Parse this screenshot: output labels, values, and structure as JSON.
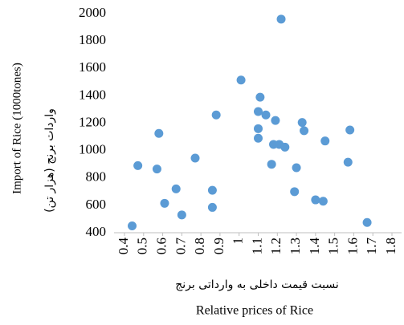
{
  "chart_data": {
    "type": "scatter",
    "y_label": "Import of Rice (1000tones)",
    "y_label_fa": "واردات برنج (هزار تن)",
    "x_label_fa": "نسبت قیمت داخلی به وارداتی برنج",
    "x_label": "Relative prices of Rice",
    "color": "#5b9bd5",
    "x": [
      0.47,
      0.44,
      0.58,
      0.57,
      0.61,
      0.67,
      0.7,
      0.77,
      0.86,
      0.86,
      0.88,
      1.01,
      1.1,
      1.11,
      1.1,
      1.1,
      1.14,
      1.19,
      1.18,
      1.21,
      1.24,
      1.17,
      1.22,
      1.33,
      1.34,
      1.3,
      1.29,
      1.4,
      1.45,
      1.44,
      1.57,
      1.58,
      1.67
    ],
    "values": [
      890,
      450,
      1125,
      865,
      615,
      720,
      530,
      945,
      710,
      585,
      1260,
      1515,
      1285,
      1390,
      1160,
      1090,
      1260,
      1220,
      1045,
      1045,
      1025,
      900,
      1960,
      1205,
      1145,
      875,
      700,
      640,
      1070,
      630,
      915,
      1150,
      475
    ],
    "xlim": [
      0.4,
      1.8
    ],
    "xticks": [
      0.4,
      0.5,
      0.6,
      0.7,
      0.8,
      0.9,
      1,
      1.1,
      1.2,
      1.3,
      1.4,
      1.5,
      1.6,
      1.7,
      1.8
    ],
    "ylim": [
      400,
      2000
    ],
    "yticks": [
      400,
      600,
      800,
      1000,
      1200,
      1400,
      1600,
      1800,
      2000
    ]
  }
}
